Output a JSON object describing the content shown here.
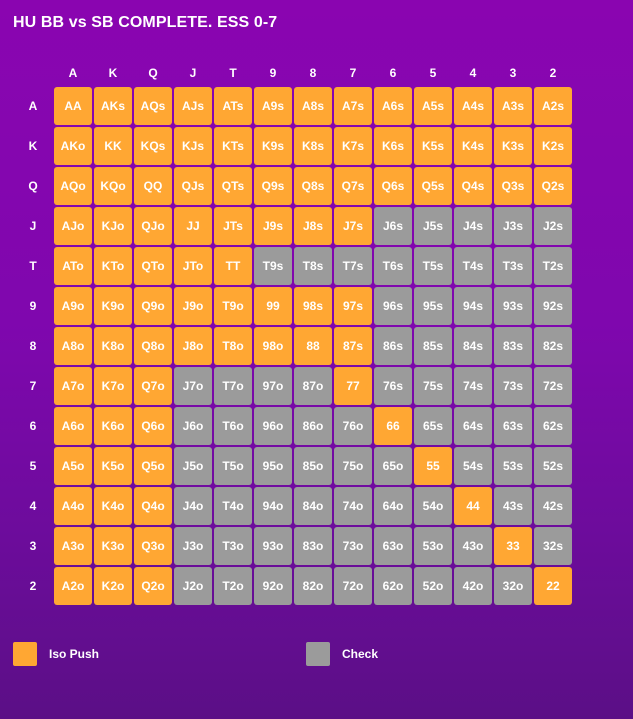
{
  "title": "HU BB vs SB COMPLETE. ESS 0-7",
  "chart_data": {
    "type": "heatmap",
    "title": "HU BB vs SB COMPLETE. ESS 0-7",
    "columns": [
      "A",
      "K",
      "Q",
      "J",
      "T",
      "9",
      "8",
      "7",
      "6",
      "5",
      "4",
      "3",
      "2"
    ],
    "rows": [
      "A",
      "K",
      "Q",
      "J",
      "T",
      "9",
      "8",
      "7",
      "6",
      "5",
      "4",
      "3",
      "2"
    ],
    "categories": {
      "P": {
        "label": "Iso Push",
        "color": "#ffa733"
      },
      "C": {
        "label": "Check",
        "color": "#9b9b9b"
      }
    },
    "cells": [
      [
        "AA",
        "AKs",
        "AQs",
        "AJs",
        "ATs",
        "A9s",
        "A8s",
        "A7s",
        "A6s",
        "A5s",
        "A4s",
        "A3s",
        "A2s"
      ],
      [
        "AKo",
        "KK",
        "KQs",
        "KJs",
        "KTs",
        "K9s",
        "K8s",
        "K7s",
        "K6s",
        "K5s",
        "K4s",
        "K3s",
        "K2s"
      ],
      [
        "AQo",
        "KQo",
        "QQ",
        "QJs",
        "QTs",
        "Q9s",
        "Q8s",
        "Q7s",
        "Q6s",
        "Q5s",
        "Q4s",
        "Q3s",
        "Q2s"
      ],
      [
        "AJo",
        "KJo",
        "QJo",
        "JJ",
        "JTs",
        "J9s",
        "J8s",
        "J7s",
        "J6s",
        "J5s",
        "J4s",
        "J3s",
        "J2s"
      ],
      [
        "ATo",
        "KTo",
        "QTo",
        "JTo",
        "TT",
        "T9s",
        "T8s",
        "T7s",
        "T6s",
        "T5s",
        "T4s",
        "T3s",
        "T2s"
      ],
      [
        "A9o",
        "K9o",
        "Q9o",
        "J9o",
        "T9o",
        "99",
        "98s",
        "97s",
        "96s",
        "95s",
        "94s",
        "93s",
        "92s"
      ],
      [
        "A8o",
        "K8o",
        "Q8o",
        "J8o",
        "T8o",
        "98o",
        "88",
        "87s",
        "86s",
        "85s",
        "84s",
        "83s",
        "82s"
      ],
      [
        "A7o",
        "K7o",
        "Q7o",
        "J7o",
        "T7o",
        "97o",
        "87o",
        "77",
        "76s",
        "75s",
        "74s",
        "73s",
        "72s"
      ],
      [
        "A6o",
        "K6o",
        "Q6o",
        "J6o",
        "T6o",
        "96o",
        "86o",
        "76o",
        "66",
        "65s",
        "64s",
        "63s",
        "62s"
      ],
      [
        "A5o",
        "K5o",
        "Q5o",
        "J5o",
        "T5o",
        "95o",
        "85o",
        "75o",
        "65o",
        "55",
        "54s",
        "53s",
        "52s"
      ],
      [
        "A4o",
        "K4o",
        "Q4o",
        "J4o",
        "T4o",
        "94o",
        "84o",
        "74o",
        "64o",
        "54o",
        "44",
        "43s",
        "42s"
      ],
      [
        "A3o",
        "K3o",
        "Q3o",
        "J3o",
        "T3o",
        "93o",
        "83o",
        "73o",
        "63o",
        "53o",
        "43o",
        "33",
        "32s"
      ],
      [
        "A2o",
        "K2o",
        "Q2o",
        "J2o",
        "T2o",
        "92o",
        "82o",
        "72o",
        "62o",
        "52o",
        "42o",
        "32o",
        "22"
      ]
    ],
    "values": [
      "PPPPPPPPPPPPP",
      "PPPPPPPPPPPPP",
      "PPPPPPPPPPPPP",
      "PPPPPPPPCCCCC",
      "PPPPPCCCCCCCC",
      "PPPPPPPPCCCCC",
      "PPPPPPPPCCCCC",
      "PPPCCCCPCCCCC",
      "PPPCCCCCPCCCC",
      "PPPCCCCCCPCCC",
      "PPPCCCCCCCPCC",
      "PPPCCCCCCCCPC",
      "PPPCCCCCCCCCP"
    ]
  },
  "legend": [
    {
      "label": "Iso Push",
      "color": "#ffa733"
    },
    {
      "label": "Check",
      "color": "#9b9b9b"
    }
  ]
}
